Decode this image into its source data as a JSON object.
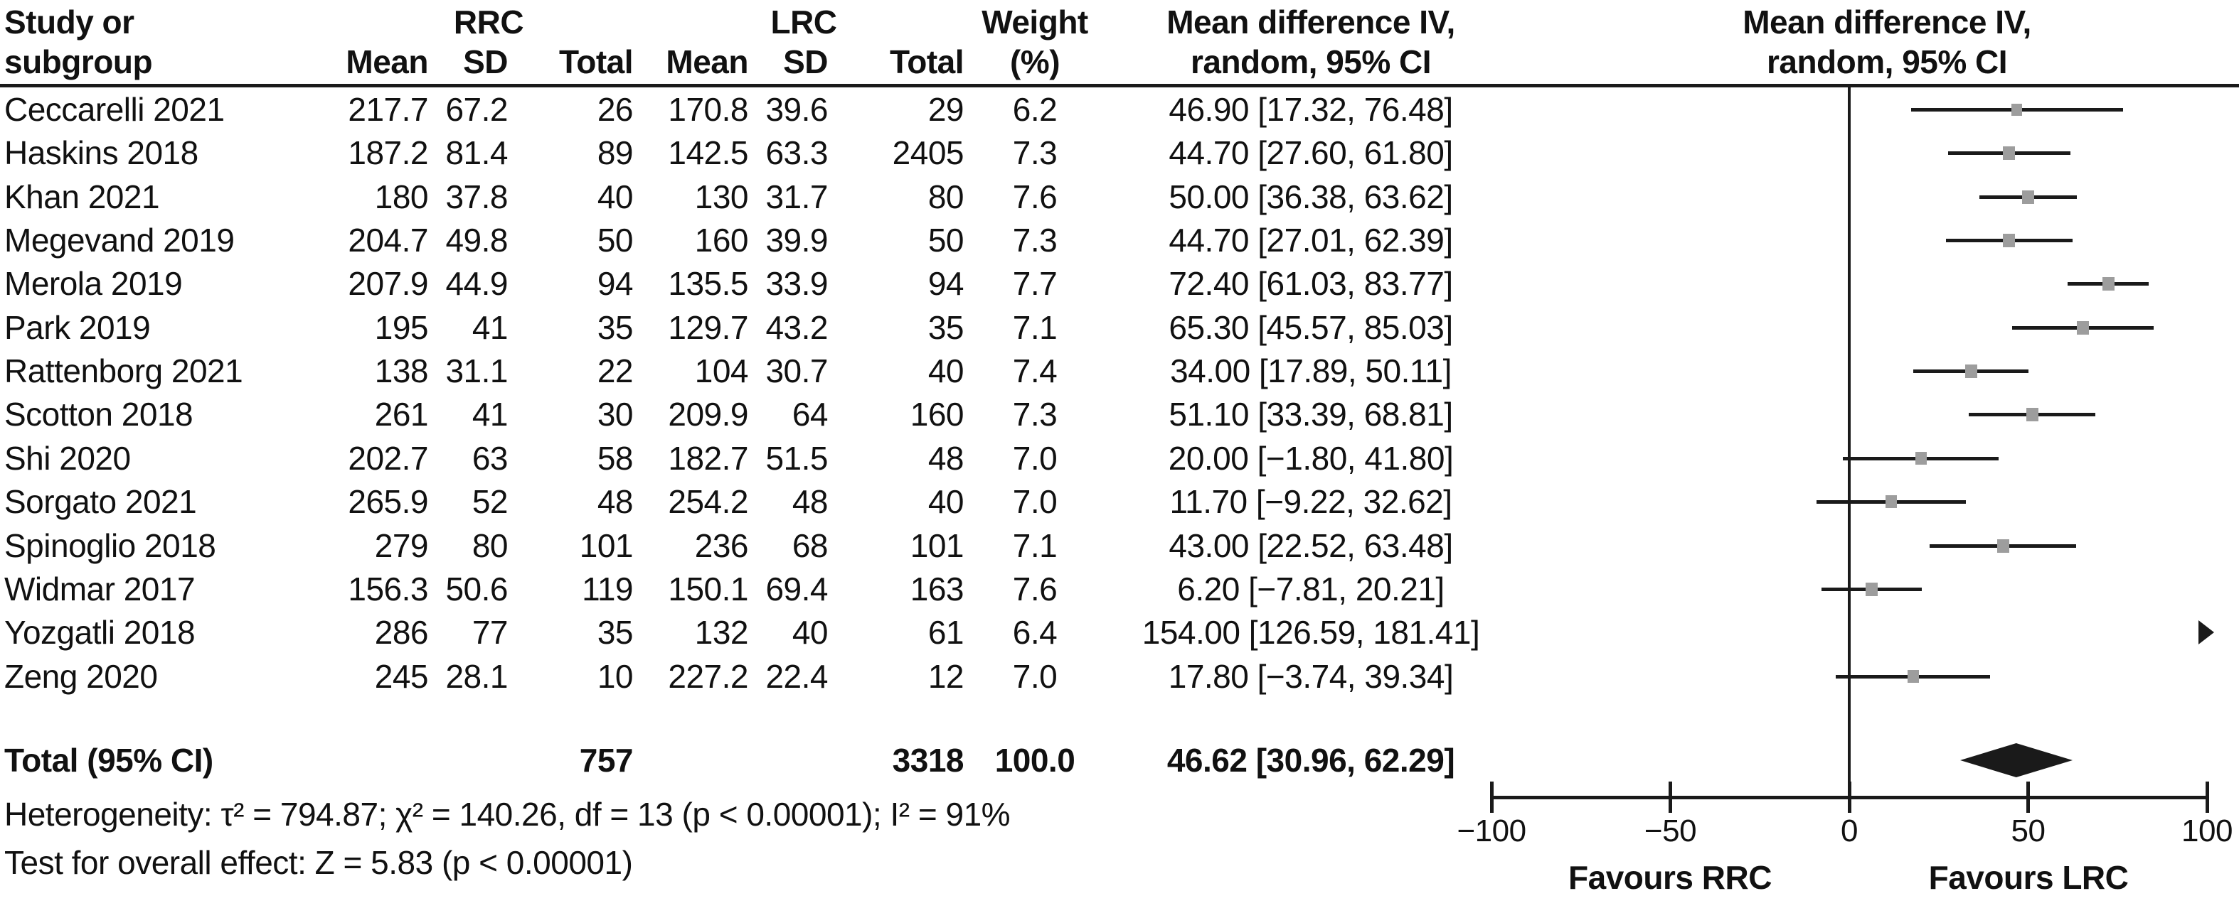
{
  "table": {
    "header": {
      "study_line1": "Study or",
      "study_line2": "subgroup",
      "group_rrc": "RRC",
      "group_lrc": "LRC",
      "mean_rrc": "Mean",
      "sd_rrc": "SD",
      "total_rrc": "Total",
      "mean_lrc": "Mean",
      "sd_lrc": "SD",
      "total_lrc": "Total",
      "weight_line1": "Weight",
      "weight_line2": "(%)",
      "md_text_line1": "Mean difference IV,",
      "md_text_line2": "random, 95% CI",
      "md_plot_line1": "Mean difference IV,",
      "md_plot_line2": "random, 95% CI"
    },
    "stats": {
      "heterogeneity": "Heterogeneity: τ² = 794.87; χ² = 140.26, df = 13 (p < 0.00001); I² = 91%",
      "overall_effect": "Test for overall effect: Z = 5.83 (p < 0.00001)"
    }
  },
  "chart_data": {
    "type": "forest",
    "effect_measure": "Mean difference IV, random, 95% CI",
    "xlim": [
      -100,
      100
    ],
    "ticks": [
      -100,
      -50,
      0,
      50,
      100
    ],
    "tick_labels": [
      "−100",
      "−50",
      "0",
      "50",
      "100"
    ],
    "favours_left": "Favours RRC",
    "favours_right": "Favours LRC",
    "marker_color": "#9d9d9d",
    "line_color": "#1a1a1a",
    "diamond_color": "#1a1a1a",
    "studies": [
      {
        "name": "Ceccarelli 2021",
        "mean_rrc": "217.7",
        "sd_rrc": "67.2",
        "total_rrc": "26",
        "mean_lrc": "170.8",
        "sd_lrc": "39.6",
        "total_lrc": "29",
        "weight": "6.2",
        "ci": "46.90 [17.32, 76.48]",
        "md": 46.9,
        "lo": 17.32,
        "hi": 76.48,
        "w": 6.2
      },
      {
        "name": "Haskins 2018",
        "mean_rrc": "187.2",
        "sd_rrc": "81.4",
        "total_rrc": "89",
        "mean_lrc": "142.5",
        "sd_lrc": "63.3",
        "total_lrc": "2405",
        "weight": "7.3",
        "ci": "44.70 [27.60, 61.80]",
        "md": 44.7,
        "lo": 27.6,
        "hi": 61.8,
        "w": 7.3
      },
      {
        "name": "Khan 2021",
        "mean_rrc": "180",
        "sd_rrc": "37.8",
        "total_rrc": "40",
        "mean_lrc": "130",
        "sd_lrc": "31.7",
        "total_lrc": "80",
        "weight": "7.6",
        "ci": "50.00 [36.38, 63.62]",
        "md": 50.0,
        "lo": 36.38,
        "hi": 63.62,
        "w": 7.6
      },
      {
        "name": "Megevand 2019",
        "mean_rrc": "204.7",
        "sd_rrc": "49.8",
        "total_rrc": "50",
        "mean_lrc": "160",
        "sd_lrc": "39.9",
        "total_lrc": "50",
        "weight": "7.3",
        "ci": "44.70 [27.01, 62.39]",
        "md": 44.7,
        "lo": 27.01,
        "hi": 62.39,
        "w": 7.3
      },
      {
        "name": "Merola 2019",
        "mean_rrc": "207.9",
        "sd_rrc": "44.9",
        "total_rrc": "94",
        "mean_lrc": "135.5",
        "sd_lrc": "33.9",
        "total_lrc": "94",
        "weight": "7.7",
        "ci": "72.40 [61.03, 83.77]",
        "md": 72.4,
        "lo": 61.03,
        "hi": 83.77,
        "w": 7.7
      },
      {
        "name": "Park 2019",
        "mean_rrc": "195",
        "sd_rrc": "41",
        "total_rrc": "35",
        "mean_lrc": "129.7",
        "sd_lrc": "43.2",
        "total_lrc": "35",
        "weight": "7.1",
        "ci": "65.30 [45.57, 85.03]",
        "md": 65.3,
        "lo": 45.57,
        "hi": 85.03,
        "w": 7.1
      },
      {
        "name": "Rattenborg 2021",
        "mean_rrc": "138",
        "sd_rrc": "31.1",
        "total_rrc": "22",
        "mean_lrc": "104",
        "sd_lrc": "30.7",
        "total_lrc": "40",
        "weight": "7.4",
        "ci": "34.00 [17.89, 50.11]",
        "md": 34.0,
        "lo": 17.89,
        "hi": 50.11,
        "w": 7.4
      },
      {
        "name": "Scotton 2018",
        "mean_rrc": "261",
        "sd_rrc": "41",
        "total_rrc": "30",
        "mean_lrc": "209.9",
        "sd_lrc": "64",
        "total_lrc": "160",
        "weight": "7.3",
        "ci": "51.10 [33.39, 68.81]",
        "md": 51.1,
        "lo": 33.39,
        "hi": 68.81,
        "w": 7.3
      },
      {
        "name": "Shi 2020",
        "mean_rrc": "202.7",
        "sd_rrc": "63",
        "total_rrc": "58",
        "mean_lrc": "182.7",
        "sd_lrc": "51.5",
        "total_lrc": "48",
        "weight": "7.0",
        "ci": "20.00 [−1.80, 41.80]",
        "md": 20.0,
        "lo": -1.8,
        "hi": 41.8,
        "w": 7.0
      },
      {
        "name": "Sorgato 2021",
        "mean_rrc": "265.9",
        "sd_rrc": "52",
        "total_rrc": "48",
        "mean_lrc": "254.2",
        "sd_lrc": "48",
        "total_lrc": "40",
        "weight": "7.0",
        "ci": "11.70 [−9.22, 32.62]",
        "md": 11.7,
        "lo": -9.22,
        "hi": 32.62,
        "w": 7.0
      },
      {
        "name": "Spinoglio 2018",
        "mean_rrc": "279",
        "sd_rrc": "80",
        "total_rrc": "101",
        "mean_lrc": "236",
        "sd_lrc": "68",
        "total_lrc": "101",
        "weight": "7.1",
        "ci": "43.00 [22.52, 63.48]",
        "md": 43.0,
        "lo": 22.52,
        "hi": 63.48,
        "w": 7.1
      },
      {
        "name": "Widmar 2017",
        "mean_rrc": "156.3",
        "sd_rrc": "50.6",
        "total_rrc": "119",
        "mean_lrc": "150.1",
        "sd_lrc": "69.4",
        "total_lrc": "163",
        "weight": "7.6",
        "ci": "6.20 [−7.81, 20.21]",
        "md": 6.2,
        "lo": -7.81,
        "hi": 20.21,
        "w": 7.6
      },
      {
        "name": "Yozgatli 2018",
        "mean_rrc": "286",
        "sd_rrc": "77",
        "total_rrc": "35",
        "mean_lrc": "132",
        "sd_lrc": "40",
        "total_lrc": "61",
        "weight": "6.4",
        "ci": "154.00 [126.59, 181.41]",
        "md": 154.0,
        "lo": 126.59,
        "hi": 181.41,
        "w": 6.4
      },
      {
        "name": "Zeng 2020",
        "mean_rrc": "245",
        "sd_rrc": "28.1",
        "total_rrc": "10",
        "mean_lrc": "227.2",
        "sd_lrc": "22.4",
        "total_lrc": "12",
        "weight": "7.0",
        "ci": "17.80 [−3.74, 39.34]",
        "md": 17.8,
        "lo": -3.74,
        "hi": 39.34,
        "w": 7.0
      }
    ],
    "total": {
      "label": "Total (95% CI)",
      "total_rrc": "757",
      "total_lrc": "3318",
      "weight": "100.0",
      "ci": "46.62 [30.96, 62.29]",
      "md": 46.62,
      "lo": 30.96,
      "hi": 62.29
    }
  }
}
